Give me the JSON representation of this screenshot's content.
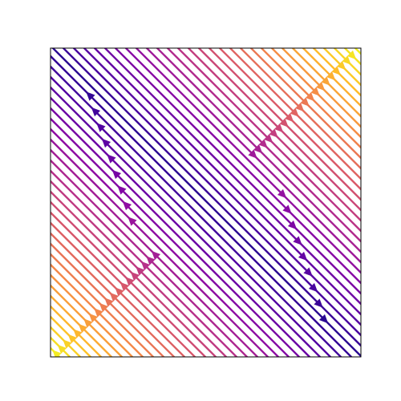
{
  "chart_data": {
    "type": "streamplot",
    "colormap": "plasma",
    "grid": false
  }
}
